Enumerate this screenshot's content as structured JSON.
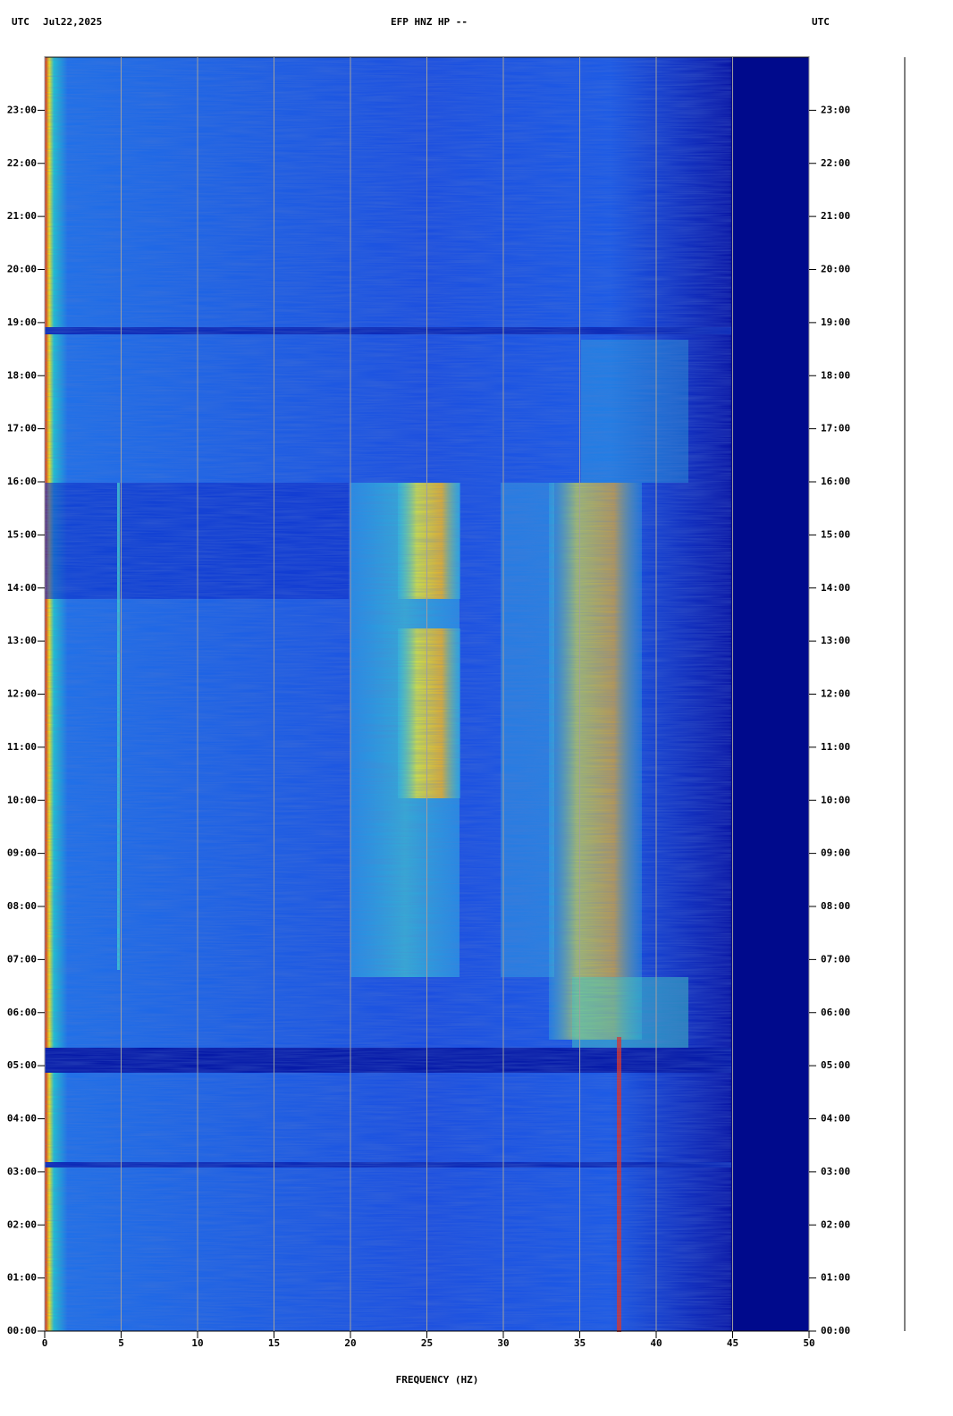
{
  "chart_data": {
    "type": "spectrogram",
    "title": "EFP HNZ HP --",
    "timezone_left": "UTC",
    "date": "Jul22,2025",
    "timezone_right": "UTC",
    "xlabel": "FREQUENCY (HZ)",
    "xlim": [
      0,
      50
    ],
    "xticks": [
      0,
      5,
      10,
      15,
      20,
      25,
      30,
      35,
      40,
      45,
      50
    ],
    "ylim": [
      0,
      24
    ],
    "yticks": [
      {
        "value": 0,
        "label": "00:00"
      },
      {
        "value": 1,
        "label": "01:00"
      },
      {
        "value": 2,
        "label": "02:00"
      },
      {
        "value": 3,
        "label": "03:00"
      },
      {
        "value": 4,
        "label": "04:00"
      },
      {
        "value": 5,
        "label": "05:00"
      },
      {
        "value": 6,
        "label": "06:00"
      },
      {
        "value": 7,
        "label": "07:00"
      },
      {
        "value": 8,
        "label": "08:00"
      },
      {
        "value": 9,
        "label": "09:00"
      },
      {
        "value": 10,
        "label": "10:00"
      },
      {
        "value": 11,
        "label": "11:00"
      },
      {
        "value": 12,
        "label": "12:00"
      },
      {
        "value": 13,
        "label": "13:00"
      },
      {
        "value": 14,
        "label": "14:00"
      },
      {
        "value": 15,
        "label": "15:00"
      },
      {
        "value": 16,
        "label": "16:00"
      },
      {
        "value": 17,
        "label": "17:00"
      },
      {
        "value": 18,
        "label": "18:00"
      },
      {
        "value": 19,
        "label": "19:00"
      },
      {
        "value": 20,
        "label": "20:00"
      },
      {
        "value": 21,
        "label": "21:00"
      },
      {
        "value": 22,
        "label": "22:00"
      },
      {
        "value": 23,
        "label": "23:00"
      }
    ],
    "grid": true
  }
}
